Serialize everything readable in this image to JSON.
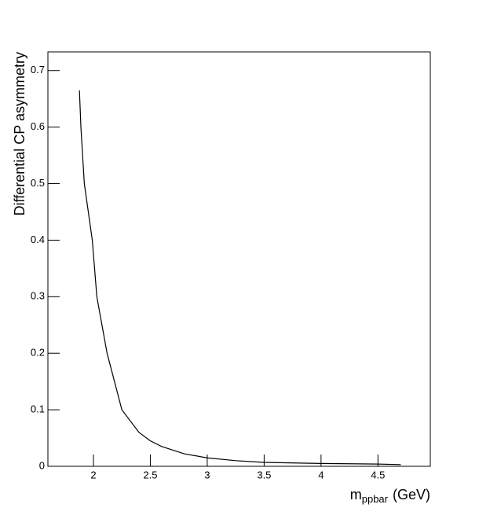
{
  "chart_data": {
    "type": "line",
    "x_label": "m",
    "x_label_sub": "ppbar",
    "x_label_unit": "(GeV)",
    "y_label": "Differential CP asymmetry",
    "x": [
      1.877,
      1.89,
      1.92,
      1.99,
      2.03,
      2.12,
      2.25,
      2.4,
      2.5,
      2.6,
      2.8,
      3.0,
      3.25,
      3.5,
      4.0,
      4.5,
      4.7
    ],
    "values": [
      0.665,
      0.6,
      0.5,
      0.4,
      0.3,
      0.2,
      0.1,
      0.06,
      0.045,
      0.035,
      0.022,
      0.015,
      0.01,
      0.007,
      0.005,
      0.004,
      0.003
    ],
    "color": "#000000",
    "xlim": [
      1.6,
      4.96
    ],
    "ylim": [
      0,
      0.733
    ],
    "xticks": [
      2,
      2.5,
      3,
      3.5,
      4,
      4.5
    ],
    "yticks": [
      0,
      0.1,
      0.2,
      0.3,
      0.4,
      0.5,
      0.6,
      0.7
    ]
  }
}
